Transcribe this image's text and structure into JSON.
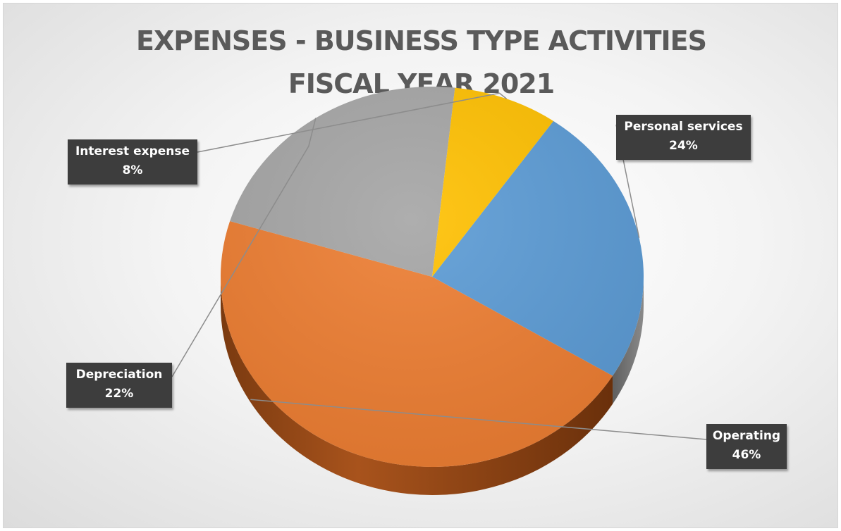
{
  "chart_data": {
    "type": "pie",
    "title": "EXPENSES - BUSINESS TYPE ACTIVITIES",
    "subtitle": "FISCAL YEAR 2021",
    "slices": [
      {
        "label": "Personal services",
        "value": 24,
        "display": "24%",
        "color": "#5b9bd5"
      },
      {
        "label": "Operating",
        "value": 46,
        "display": "46%",
        "color": "#ed7d31"
      },
      {
        "label": "Depreciation",
        "value": 22,
        "display": "22%",
        "color": "#a5a5a5"
      },
      {
        "label": "Interest expense",
        "value": 8,
        "display": "8%",
        "color": "#ffc000"
      }
    ],
    "legend": "none",
    "labels": "outside-callouts"
  }
}
